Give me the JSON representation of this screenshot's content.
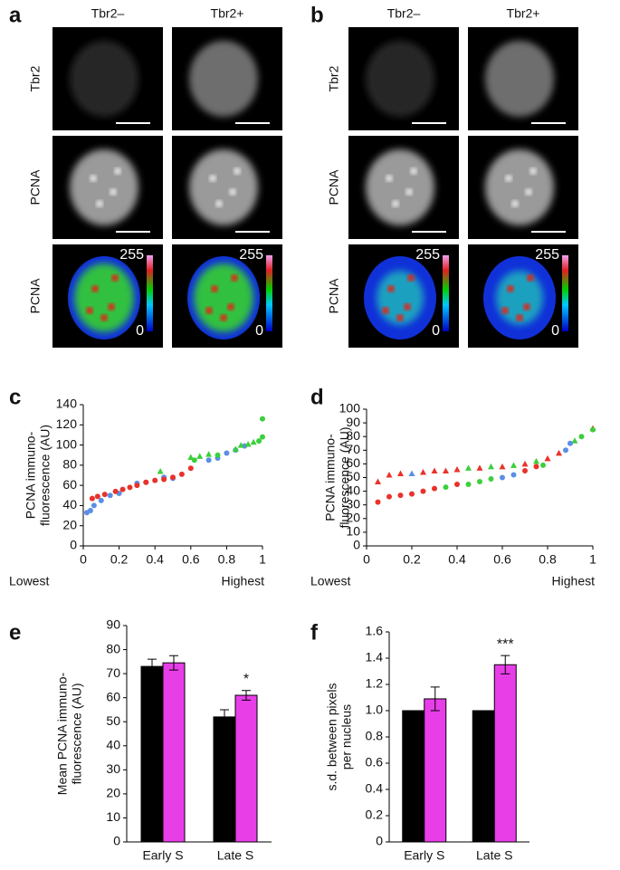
{
  "image_panels": [
    {
      "panel": "a",
      "columns": [
        "Tbr2–",
        "Tbr2+"
      ],
      "rows": [
        "Tbr2",
        "PCNA",
        "PCNA"
      ],
      "colorbar": [
        "255",
        "0"
      ]
    },
    {
      "panel": "b",
      "columns": [
        "Tbr2–",
        "Tbr2+"
      ],
      "rows": [
        "Tbr2",
        "PCNA",
        "PCNA"
      ],
      "colorbar": [
        "255",
        "0"
      ]
    }
  ],
  "chart_data": [
    {
      "type": "scatter",
      "panel": "c",
      "ylabel": [
        "PCNA immuno-",
        "fluorescence (AU)"
      ],
      "xlabel_left": "Lowest",
      "xlabel_right": "Highest",
      "xlim": [
        0,
        1
      ],
      "xticks": [
        0,
        0.2,
        0.4,
        0.6,
        0.8,
        1
      ],
      "ylim": [
        0,
        140
      ],
      "yticks": [
        0,
        20,
        40,
        60,
        80,
        100,
        120,
        140
      ],
      "series": [
        {
          "color": "#5b8ee6",
          "marker": "circle",
          "x": [
            0.02,
            0.04,
            0.06,
            0.1,
            0.15,
            0.2,
            0.3,
            0.35,
            0.45,
            0.5,
            0.7,
            0.75,
            0.8,
            0.85,
            0.9
          ],
          "values": [
            33,
            35,
            40,
            45,
            50,
            52,
            62,
            63,
            68,
            67,
            85,
            87,
            92,
            95,
            99
          ]
        },
        {
          "color": "#e8322a",
          "marker": "circle",
          "x": [
            0.05,
            0.08,
            0.12,
            0.18,
            0.22,
            0.26,
            0.3,
            0.35,
            0.4,
            0.45,
            0.5,
            0.55,
            0.6
          ],
          "values": [
            47,
            49,
            51,
            54,
            56,
            58,
            60,
            63,
            65,
            66,
            68,
            71,
            77
          ]
        },
        {
          "color": "#3ccf3c",
          "marker": "triangle",
          "x": [
            0.43,
            0.6,
            0.65,
            0.7,
            0.85,
            0.88,
            0.92,
            0.95
          ],
          "values": [
            74,
            88,
            89,
            91,
            96,
            100,
            101,
            103
          ]
        },
        {
          "color": "#3ccf3c",
          "marker": "circle",
          "x": [
            0.62,
            0.75,
            0.98,
            1,
            1
          ],
          "values": [
            85,
            90,
            104,
            126,
            108
          ]
        }
      ]
    },
    {
      "type": "scatter",
      "panel": "d",
      "ylabel": [
        "PCNA immuno-",
        "fluorescence (AU)"
      ],
      "xlabel_left": "Lowest",
      "xlabel_right": "Highest",
      "xlim": [
        0,
        1
      ],
      "xticks": [
        0,
        0.2,
        0.4,
        0.6,
        0.8,
        1
      ],
      "ylim": [
        0,
        100
      ],
      "yticks": [
        0,
        10,
        20,
        30,
        40,
        50,
        60,
        70,
        80,
        90,
        100
      ],
      "series": [
        {
          "color": "#e8322a",
          "marker": "triangle",
          "x": [
            0.05,
            0.1,
            0.15,
            0.25,
            0.3,
            0.35,
            0.4,
            0.5,
            0.6,
            0.7,
            0.8,
            0.85,
            1
          ],
          "values": [
            47,
            52,
            53,
            54,
            55,
            55,
            56,
            57,
            58,
            60,
            64,
            68,
            86
          ]
        },
        {
          "color": "#3ccf3c",
          "marker": "triangle",
          "x": [
            0.45,
            0.55,
            0.65,
            0.75,
            0.92
          ],
          "values": [
            57,
            58,
            59,
            62,
            77
          ]
        },
        {
          "color": "#5b8ee6",
          "marker": "triangle",
          "x": [
            0.2
          ],
          "values": [
            53
          ]
        },
        {
          "color": "#e8322a",
          "marker": "circle",
          "x": [
            0.05,
            0.1,
            0.15,
            0.2,
            0.25,
            0.3,
            0.4,
            0.7,
            0.75
          ],
          "values": [
            32,
            36,
            37,
            38,
            40,
            42,
            45,
            55,
            58
          ]
        },
        {
          "color": "#3ccf3c",
          "marker": "circle",
          "x": [
            0.35,
            0.45,
            0.5,
            0.55,
            0.78,
            0.95,
            1
          ],
          "values": [
            43,
            45,
            47,
            49,
            59,
            80,
            85
          ]
        },
        {
          "color": "#5b8ee6",
          "marker": "circle",
          "x": [
            0.6,
            0.65,
            0.88,
            0.9
          ],
          "values": [
            50,
            52,
            70,
            75
          ]
        }
      ]
    },
    {
      "type": "bar",
      "panel": "e",
      "ylabel": [
        "Mean PCNA immuno-",
        "fluorescence (AU)"
      ],
      "categories": [
        "Early S",
        "Late S"
      ],
      "ylim": [
        0,
        90
      ],
      "yticks": [
        0,
        10,
        20,
        30,
        40,
        50,
        60,
        70,
        80,
        90
      ],
      "series": [
        {
          "color": "#000000",
          "values": [
            73,
            52
          ],
          "errors": [
            3,
            3
          ]
        },
        {
          "color": "#e83ee8",
          "values": [
            74.5,
            61
          ],
          "errors": [
            3,
            2
          ]
        }
      ],
      "annotations": [
        {
          "text": "*",
          "category": "Late S"
        }
      ]
    },
    {
      "type": "bar",
      "panel": "f",
      "ylabel": [
        "s.d. between pixels",
        "per nucleus"
      ],
      "categories": [
        "Early S",
        "Late S"
      ],
      "ylim": [
        0,
        1.6
      ],
      "yticks": [
        0,
        {
          "value": 0.2,
          "label": "0.2"
        },
        {
          "value": 0.4,
          "label": "0.4"
        },
        {
          "value": 0.6,
          "label": "0.6"
        },
        {
          "value": 0.8,
          "label": "0.8"
        },
        {
          "value": 1,
          "label": "1.0"
        },
        {
          "value": 1.2,
          "label": "1.2"
        },
        {
          "value": 1.4,
          "label": "1.4"
        },
        {
          "value": 1.6,
          "label": "1.6"
        }
      ],
      "series": [
        {
          "color": "#000000",
          "values": [
            1,
            1
          ],
          "errors": [
            0,
            0
          ]
        },
        {
          "color": "#e83ee8",
          "values": [
            1.09,
            1.35
          ],
          "errors": [
            0.09,
            0.07
          ]
        }
      ],
      "annotations": [
        {
          "text": "***",
          "category": "Late S"
        }
      ]
    }
  ]
}
